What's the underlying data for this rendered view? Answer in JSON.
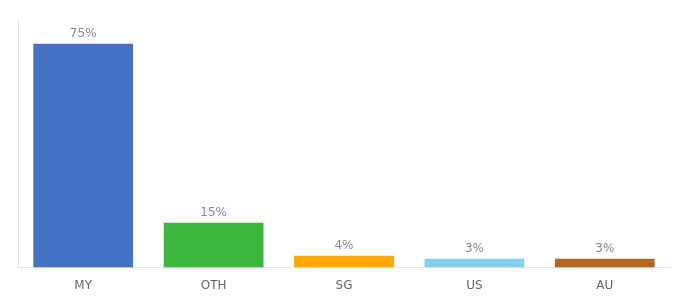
{
  "chart_data": {
    "type": "bar",
    "categories": [
      "MY",
      "OTH",
      "SG",
      "US",
      "AU"
    ],
    "values": [
      75,
      15,
      4,
      3,
      3
    ],
    "value_labels": [
      "75%",
      "15%",
      "4%",
      "3%",
      "3%"
    ],
    "data_labels": true,
    "colors": [
      "#4472C4",
      "#3CB83C",
      "#FFA500",
      "#87CEEB",
      "#B5651D"
    ],
    "ylim": [
      0,
      83
    ],
    "grid": false,
    "tick_labels": "x"
  }
}
